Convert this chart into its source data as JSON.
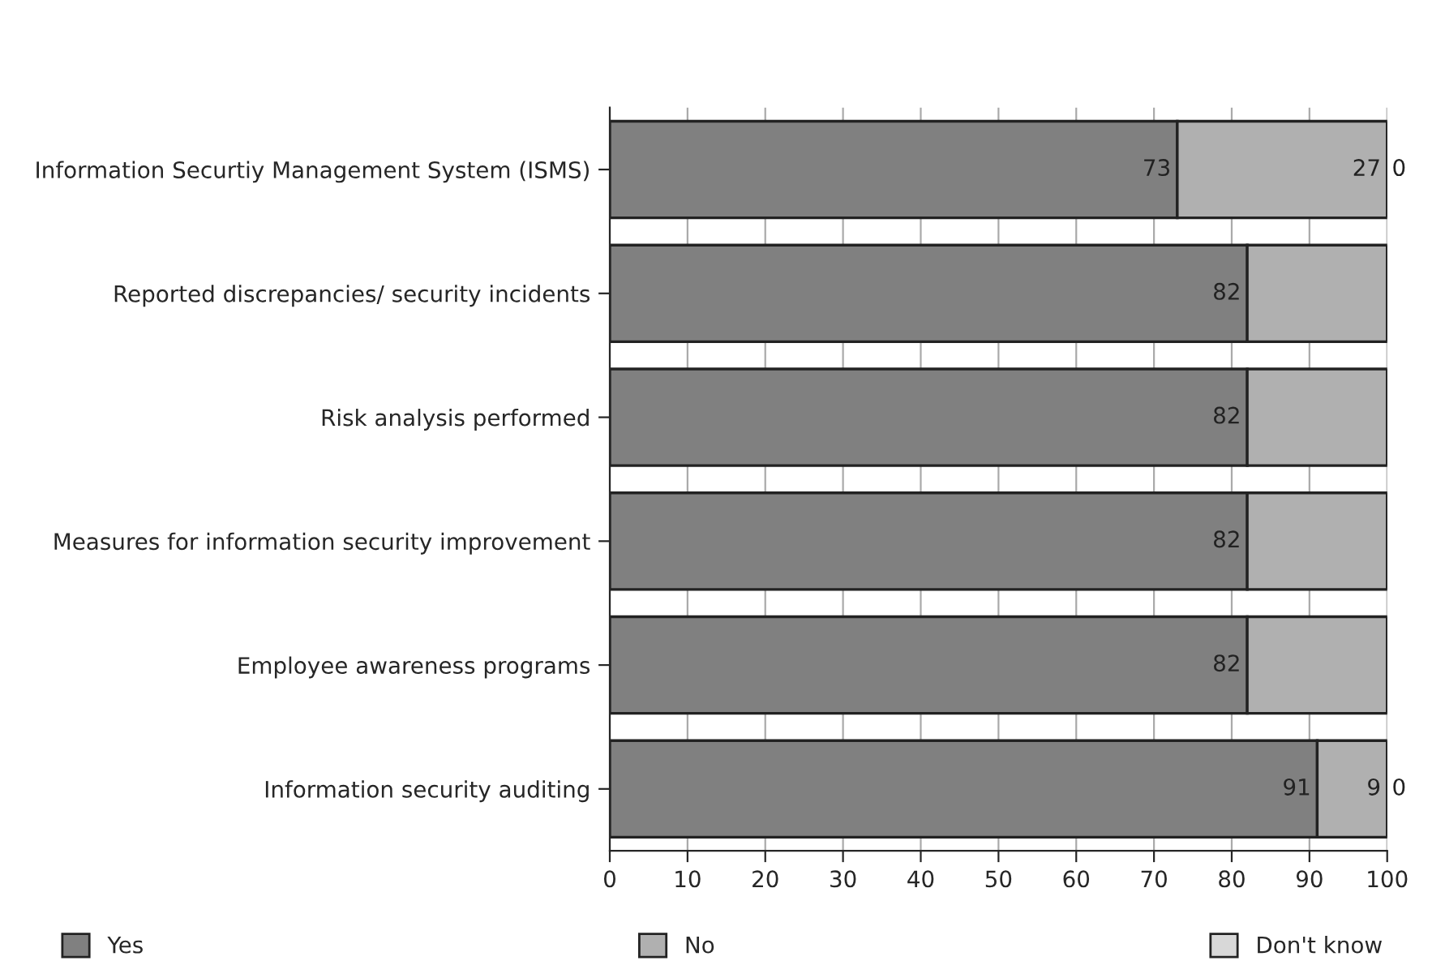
{
  "chart_data": {
    "type": "bar",
    "orientation": "horizontal",
    "stacked": true,
    "categories": [
      "Information Securtiy Management System (ISMS)",
      "Reported discrepancies/ security incidents",
      "Risk analysis performed",
      "Measures for information security improvement",
      "Employee awareness programs",
      "Information security auditing"
    ],
    "series": [
      {
        "name": "Yes",
        "color": "#808080",
        "values": [
          73,
          82,
          82,
          82,
          82,
          91
        ],
        "value_labels": [
          "73",
          "82",
          "82",
          "82",
          "82",
          "91"
        ]
      },
      {
        "name": "No",
        "color": "#b0b0b0",
        "values": [
          27,
          18,
          18,
          18,
          18,
          9
        ],
        "value_labels": [
          "27",
          null,
          null,
          null,
          null,
          "9"
        ]
      },
      {
        "name": "Don't know",
        "color": "#d8d8d8",
        "values": [
          0,
          0,
          0,
          0,
          0,
          0
        ],
        "value_labels": [
          "0",
          null,
          null,
          null,
          null,
          "0"
        ]
      }
    ],
    "xlim": [
      0,
      100
    ],
    "xticks": [
      0,
      10,
      20,
      30,
      40,
      50,
      60,
      70,
      80,
      90,
      100
    ],
    "grid": "x",
    "legend": "bottom"
  }
}
